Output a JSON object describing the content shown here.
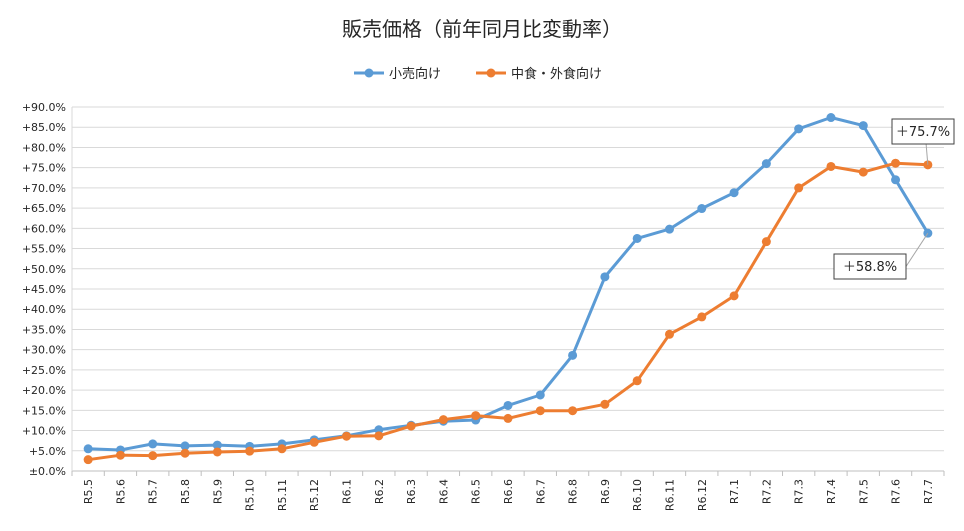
{
  "chart_data": {
    "type": "line",
    "title": "販売価格（前年同月比変動率）",
    "xlabel": "",
    "ylabel": "",
    "ylim": [
      0,
      90
    ],
    "y_tick_step": 5,
    "y_tick_labels": [
      "±0.0%",
      "+5.0%",
      "+10.0%",
      "+15.0%",
      "+20.0%",
      "+25.0%",
      "+30.0%",
      "+35.0%",
      "+40.0%",
      "+45.0%",
      "+50.0%",
      "+55.0%",
      "+60.0%",
      "+65.0%",
      "+70.0%",
      "+75.0%",
      "+80.0%",
      "+85.0%",
      "+90.0%"
    ],
    "grid": true,
    "legend_position": "top-center",
    "categories": [
      "R5.5",
      "R5.6",
      "R5.7",
      "R5.8",
      "R5.9",
      "R5.10",
      "R5.11",
      "R5.12",
      "R6.1",
      "R6.2",
      "R6.3",
      "R6.4",
      "R6.5",
      "R6.6",
      "R6.7",
      "R6.8",
      "R6.9",
      "R6.10",
      "R6.11",
      "R6.12",
      "R7.1",
      "R7.2",
      "R7.3",
      "R7.4",
      "R7.5",
      "R7.6",
      "R7.7"
    ],
    "series": [
      {
        "name": "小売向け",
        "color": "#5b9bd5",
        "values": [
          5.5,
          5.2,
          6.7,
          6.2,
          6.4,
          6.1,
          6.7,
          7.7,
          8.7,
          10.2,
          11.3,
          12.3,
          12.6,
          16.2,
          18.8,
          28.6,
          48.0,
          57.5,
          59.8,
          64.9,
          68.8,
          76.0,
          84.6,
          87.4,
          85.4,
          72.0,
          58.8
        ]
      },
      {
        "name": "中食・外食向け",
        "color": "#ed7d31",
        "values": [
          2.8,
          3.9,
          3.8,
          4.4,
          4.7,
          4.9,
          5.5,
          7.1,
          8.6,
          8.7,
          11.1,
          12.7,
          13.7,
          13.0,
          14.9,
          14.9,
          16.5,
          22.3,
          33.8,
          38.1,
          43.3,
          56.7,
          70.0,
          75.3,
          73.9,
          76.1,
          75.7
        ]
      }
    ],
    "annotations": [
      {
        "text": "＋75.7%",
        "series": 1,
        "index": 26
      },
      {
        "text": "＋58.8%",
        "series": 0,
        "index": 26
      }
    ]
  }
}
